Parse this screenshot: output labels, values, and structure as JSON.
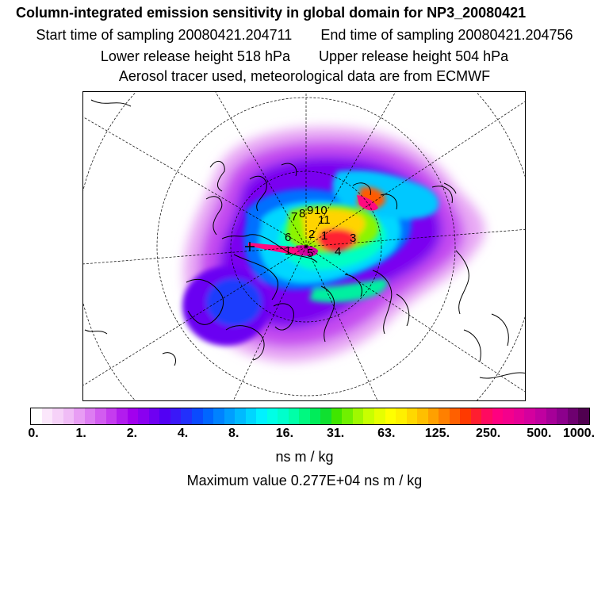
{
  "header": {
    "title": "Column-integrated emission sensitivity in global domain for NP3_20080421",
    "start_label": "Start time of sampling 20080421.204711",
    "end_label": "End time of sampling 20080421.204756",
    "lower_label": "Lower release height  518 hPa",
    "upper_label": "Upper release height  504 hPa",
    "note": "Aerosol tracer used, meteorological data are from ECMWF"
  },
  "map": {
    "projection": "north polar stereographic",
    "markers": [
      "7",
      "8",
      "9",
      "10",
      "11",
      "6",
      "2",
      "1",
      "3",
      "1",
      "5",
      "4"
    ]
  },
  "colorbar": {
    "tick_labels": [
      "0.",
      "1.",
      "2.",
      "4.",
      "8.",
      "16.",
      "31.",
      "63.",
      "125.",
      "250.",
      "500.",
      "1000."
    ],
    "colors": [
      "#ffffff",
      "#fbe7fb",
      "#f6d2f8",
      "#f0bcf6",
      "#e89df4",
      "#dd7df2",
      "#d25cf0",
      "#c53cef",
      "#b21cee",
      "#a200ee",
      "#8a00f0",
      "#6f00f2",
      "#5200f4",
      "#3a18f8",
      "#2230fc",
      "#0a4afe",
      "#0066ff",
      "#0082ff",
      "#009eff",
      "#00baff",
      "#00d6ff",
      "#00f2ff",
      "#00ffe6",
      "#00ffcc",
      "#00ffa8",
      "#00f880",
      "#00ec5a",
      "#10e030",
      "#40e600",
      "#70f000",
      "#a0f800",
      "#c8ff00",
      "#e6ff00",
      "#ffff00",
      "#fff000",
      "#ffd800",
      "#ffbf00",
      "#ffa000",
      "#ff8000",
      "#ff6000",
      "#ff3a00",
      "#ff1e30",
      "#ff0a60",
      "#ff0080",
      "#f4008c",
      "#e60096",
      "#d4009e",
      "#c000a0",
      "#a60098",
      "#8c008c",
      "#6e0070",
      "#500050"
    ],
    "units": "ns m / kg"
  },
  "max_label": "Maximum value  0.277E+04 ns m / kg"
}
